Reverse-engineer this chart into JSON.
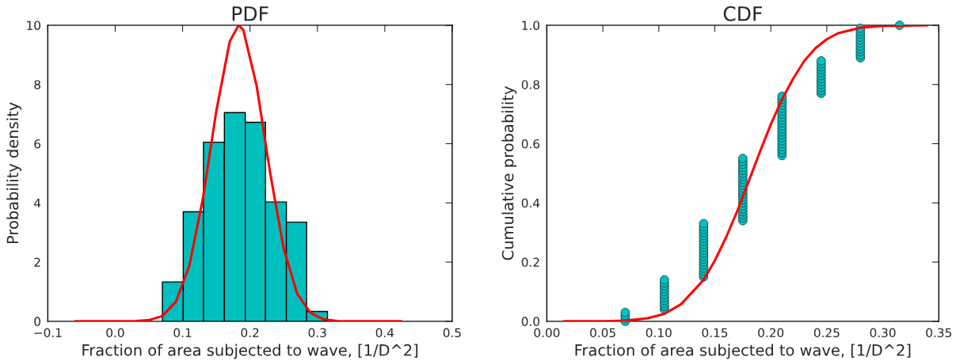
{
  "chart_data": [
    {
      "type": "histogram",
      "title": "PDF",
      "xlabel": "Fraction of area subjected to wave, [1/D^2]",
      "ylabel": "Probability density",
      "xlim": [
        -0.1,
        0.5
      ],
      "xticks": [
        {
          "value": -0.1,
          "label": "−0.1"
        },
        {
          "value": 0.0,
          "label": "0.0"
        },
        {
          "value": 0.1,
          "label": "0.1"
        },
        {
          "value": 0.2,
          "label": "0.2"
        },
        {
          "value": 0.3,
          "label": "0.3"
        },
        {
          "value": 0.4,
          "label": "0.4"
        },
        {
          "value": 0.5,
          "label": "0.5"
        }
      ],
      "ylim": [
        0,
        10
      ],
      "yticks": [
        0,
        2,
        4,
        6,
        8,
        10
      ],
      "grid": false,
      "series": [
        {
          "color": "#00bfbf",
          "bins": [
            0.07,
            0.101,
            0.131,
            0.162,
            0.193,
            0.223,
            0.254,
            0.284,
            0.315
          ],
          "values": [
            1.33,
            3.7,
            6.05,
            7.05,
            6.72,
            4.03,
            3.35,
            0.33
          ]
        },
        {
          "type": "line",
          "color": "#ff0000",
          "marker": "none",
          "line_style": "solid",
          "x": [
            -0.06,
            0.0,
            0.03,
            0.05,
            0.07,
            0.09,
            0.11,
            0.13,
            0.15,
            0.17,
            0.183,
            0.19,
            0.21,
            0.23,
            0.25,
            0.27,
            0.29,
            0.31,
            0.33,
            0.35,
            0.425
          ],
          "values": [
            0,
            0,
            0.01,
            0.04,
            0.18,
            0.66,
            1.88,
            4.13,
            7.1,
            9.46,
            10,
            9.85,
            7.94,
            5.0,
            2.46,
            0.93,
            0.28,
            0.06,
            0.01,
            0,
            0
          ]
        }
      ]
    },
    {
      "type": "scatter",
      "title": "CDF",
      "xlabel": "Fraction of area subjected to wave, [1/D^2]",
      "ylabel": "Cumulative probability",
      "xlim": [
        0.0,
        0.35
      ],
      "xticks": [
        {
          "value": 0.0,
          "label": "0.00"
        },
        {
          "value": 0.05,
          "label": "0.05"
        },
        {
          "value": 0.1,
          "label": "0.10"
        },
        {
          "value": 0.15,
          "label": "0.15"
        },
        {
          "value": 0.2,
          "label": "0.20"
        },
        {
          "value": 0.25,
          "label": "0.25"
        },
        {
          "value": 0.3,
          "label": "0.30"
        },
        {
          "value": 0.35,
          "label": "0.35"
        }
      ],
      "ylim": [
        0,
        1
      ],
      "yticks": [
        {
          "value": 0,
          "label": "0.0"
        },
        {
          "value": 0.2,
          "label": "0.2"
        },
        {
          "value": 0.4,
          "label": "0.4"
        },
        {
          "value": 0.6,
          "label": "0.6"
        },
        {
          "value": 0.8,
          "label": "0.8"
        },
        {
          "value": 1,
          "label": "1.0"
        }
      ],
      "grid": false,
      "series": [
        {
          "color": "#00bfbf",
          "marker": "circle",
          "x": [
            0.07,
            0.07,
            0.07,
            0.07,
            0.105,
            0.105,
            0.105,
            0.105,
            0.105,
            0.105,
            0.105,
            0.105,
            0.105,
            0.105,
            0.105,
            0.14,
            0.14,
            0.14,
            0.14,
            0.14,
            0.14,
            0.14,
            0.14,
            0.14,
            0.14,
            0.14,
            0.14,
            0.14,
            0.14,
            0.14,
            0.14,
            0.14,
            0.14,
            0.14,
            0.175,
            0.175,
            0.175,
            0.175,
            0.175,
            0.175,
            0.175,
            0.175,
            0.175,
            0.175,
            0.175,
            0.175,
            0.175,
            0.175,
            0.175,
            0.175,
            0.175,
            0.175,
            0.175,
            0.175,
            0.175,
            0.175,
            0.21,
            0.21,
            0.21,
            0.21,
            0.21,
            0.21,
            0.21,
            0.21,
            0.21,
            0.21,
            0.21,
            0.21,
            0.21,
            0.21,
            0.21,
            0.21,
            0.21,
            0.21,
            0.21,
            0.21,
            0.21,
            0.245,
            0.245,
            0.245,
            0.245,
            0.245,
            0.245,
            0.245,
            0.245,
            0.245,
            0.245,
            0.245,
            0.245,
            0.28,
            0.28,
            0.28,
            0.28,
            0.28,
            0.28,
            0.28,
            0.28,
            0.28,
            0.28,
            0.28,
            0.315
          ],
          "values": [
            0.0,
            0.01,
            0.02,
            0.03,
            0.04,
            0.05,
            0.06,
            0.07,
            0.08,
            0.09,
            0.1,
            0.11,
            0.12,
            0.13,
            0.14,
            0.15,
            0.16,
            0.17,
            0.18,
            0.19,
            0.2,
            0.21,
            0.22,
            0.23,
            0.24,
            0.25,
            0.26,
            0.27,
            0.28,
            0.29,
            0.3,
            0.31,
            0.32,
            0.33,
            0.34,
            0.35,
            0.36,
            0.37,
            0.38,
            0.39,
            0.4,
            0.41,
            0.42,
            0.43,
            0.44,
            0.45,
            0.46,
            0.47,
            0.48,
            0.49,
            0.5,
            0.51,
            0.52,
            0.53,
            0.54,
            0.55,
            0.56,
            0.57,
            0.58,
            0.59,
            0.6,
            0.61,
            0.62,
            0.63,
            0.64,
            0.65,
            0.66,
            0.67,
            0.68,
            0.69,
            0.7,
            0.71,
            0.72,
            0.73,
            0.74,
            0.75,
            0.76,
            0.77,
            0.78,
            0.79,
            0.8,
            0.81,
            0.82,
            0.83,
            0.84,
            0.85,
            0.86,
            0.87,
            0.88,
            0.89,
            0.9,
            0.91,
            0.92,
            0.93,
            0.94,
            0.95,
            0.96,
            0.97,
            0.98,
            0.99,
            1.0
          ]
        },
        {
          "type": "line",
          "color": "#ff0000",
          "marker": "none",
          "line_style": "solid",
          "x": [
            0.015,
            0.05,
            0.07,
            0.09,
            0.105,
            0.12,
            0.14,
            0.15,
            0.16,
            0.17,
            0.18,
            0.19,
            0.2,
            0.21,
            0.22,
            0.23,
            0.24,
            0.25,
            0.26,
            0.28,
            0.3,
            0.34
          ],
          "values": [
            0,
            0.0,
            0.002,
            0.01,
            0.025,
            0.058,
            0.14,
            0.205,
            0.283,
            0.372,
            0.47,
            0.57,
            0.665,
            0.75,
            0.82,
            0.88,
            0.923,
            0.953,
            0.973,
            0.992,
            0.998,
            1
          ]
        }
      ]
    }
  ]
}
